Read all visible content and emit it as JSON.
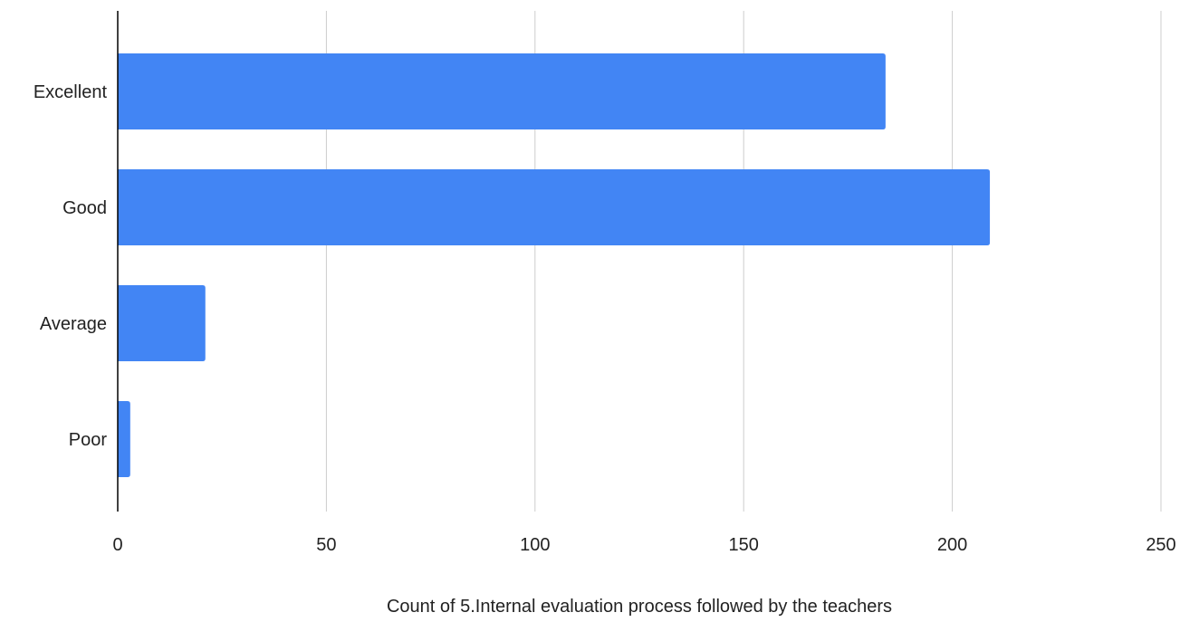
{
  "chart_data": {
    "type": "bar",
    "orientation": "horizontal",
    "categories": [
      "Excellent",
      "Good",
      "Average",
      "Poor"
    ],
    "values": [
      184,
      209,
      21,
      3
    ],
    "xlabel": "Count of 5.Internal evaluation process followed by the teachers",
    "ylabel": "",
    "xlim": [
      0,
      250
    ],
    "xticks": [
      0,
      50,
      100,
      150,
      200,
      250
    ],
    "xtick_labels": [
      "0",
      "50",
      "100",
      "150",
      "200",
      "250"
    ],
    "grid": "vertical",
    "legend": "none",
    "bar_color": "#4285F4",
    "grid_color": "#CCCCCC",
    "axis_color": "#000000"
  }
}
